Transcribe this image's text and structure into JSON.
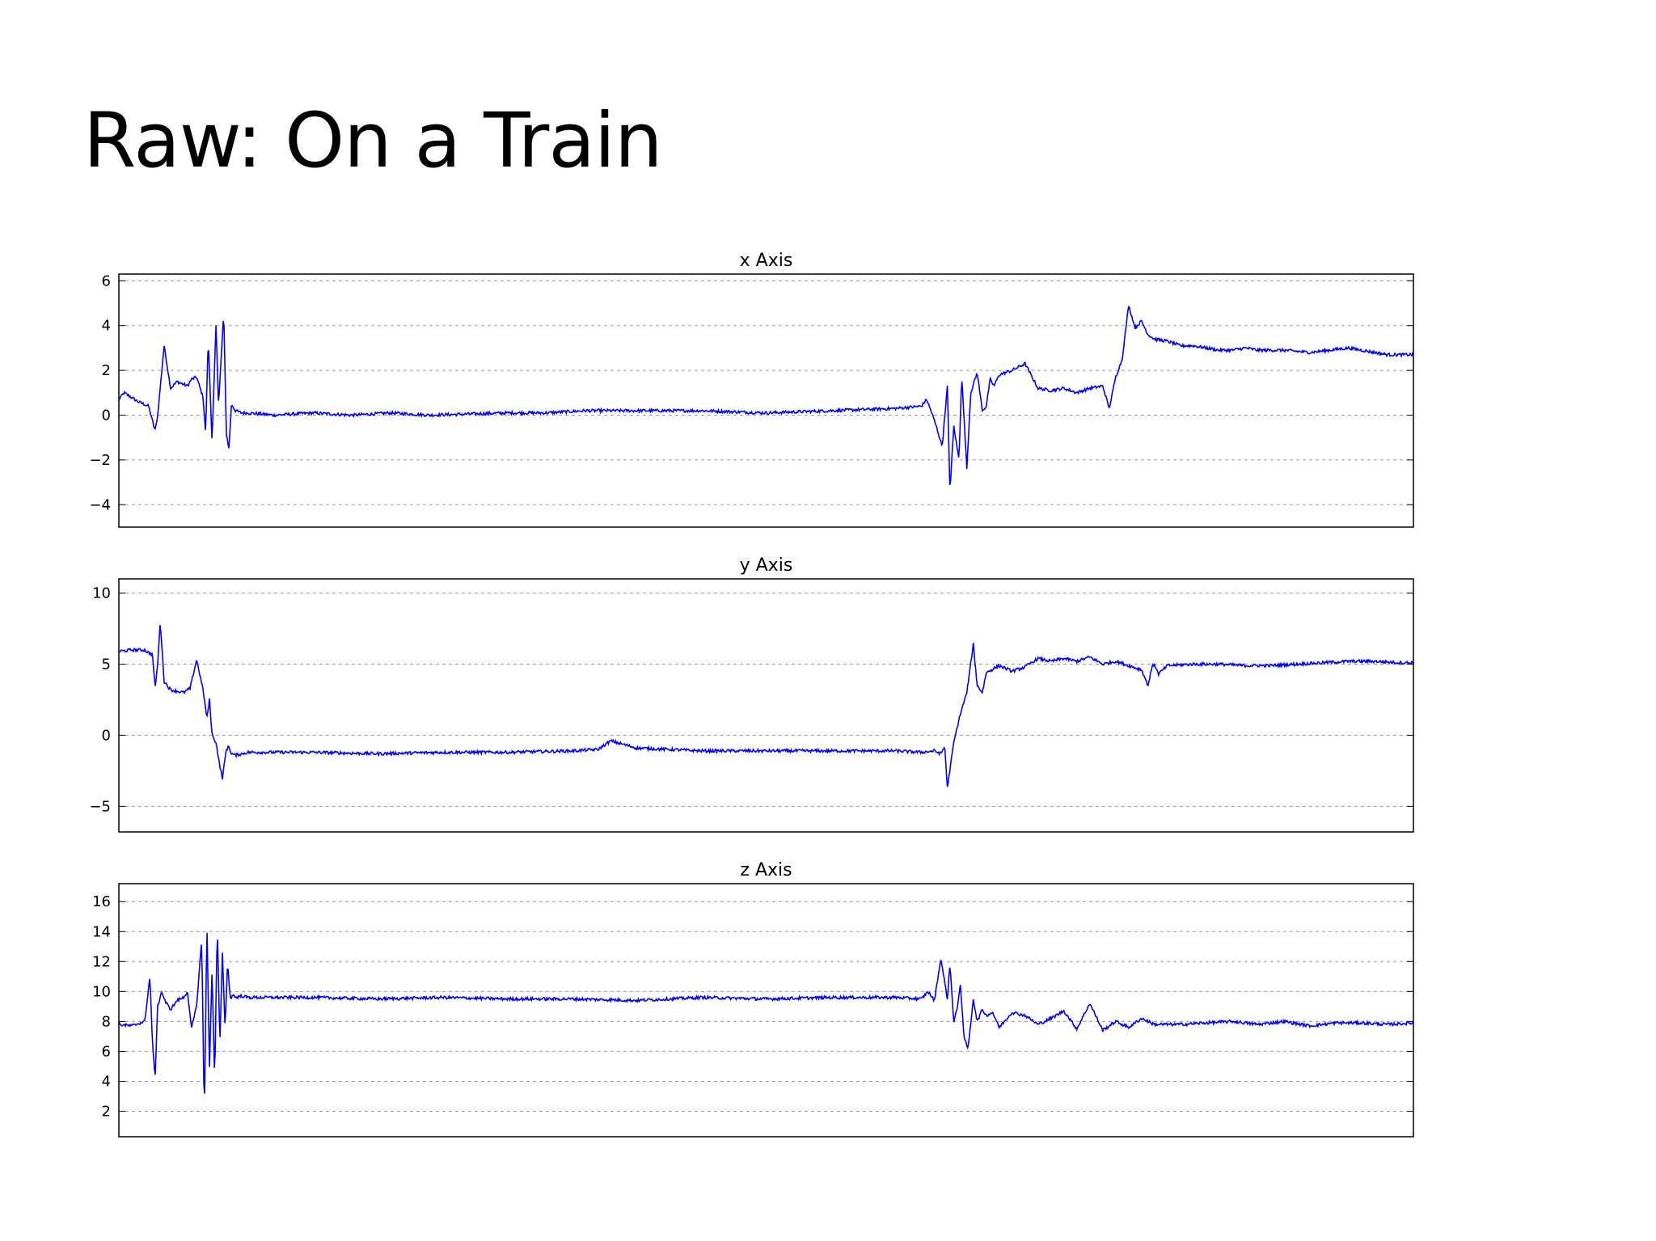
{
  "slide": {
    "title": "Raw: On a Train"
  },
  "chart_data": [
    {
      "type": "line",
      "title": "x Axis",
      "ylim": [
        -5,
        6.3
      ],
      "yticks": [
        6,
        4,
        2,
        0,
        -2,
        -4
      ],
      "ytick_labels": [
        "6",
        "4",
        "2",
        "0",
        "−2",
        "−4"
      ],
      "grid": true,
      "line_color": "#0000ff",
      "x": [
        0,
        0.004,
        0.015,
        0.023,
        0.028,
        0.03,
        0.035,
        0.04,
        0.045,
        0.053,
        0.056,
        0.06,
        0.065,
        0.067,
        0.069,
        0.072,
        0.075,
        0.077,
        0.079,
        0.081,
        0.083,
        0.085,
        0.087,
        0.09,
        0.095,
        0.1,
        0.12,
        0.15,
        0.18,
        0.21,
        0.24,
        0.27,
        0.3,
        0.33,
        0.36,
        0.4,
        0.45,
        0.5,
        0.55,
        0.6,
        0.62,
        0.624,
        0.628,
        0.632,
        0.636,
        0.64,
        0.642,
        0.645,
        0.649,
        0.651,
        0.655,
        0.658,
        0.663,
        0.667,
        0.67,
        0.673,
        0.676,
        0.68,
        0.69,
        0.7,
        0.71,
        0.72,
        0.73,
        0.74,
        0.75,
        0.76,
        0.765,
        0.77,
        0.775,
        0.78,
        0.785,
        0.79,
        0.795,
        0.8,
        0.81,
        0.82,
        0.83,
        0.84,
        0.85,
        0.86,
        0.87,
        0.88,
        0.9,
        0.92,
        0.95,
        0.98,
        1.0
      ],
      "y": [
        0.7,
        1.0,
        0.6,
        0.4,
        -0.7,
        0.0,
        3.1,
        1.2,
        1.5,
        1.3,
        1.6,
        1.7,
        0.8,
        -0.8,
        3.4,
        -1.2,
        4.0,
        0.5,
        2.5,
        4.6,
        -0.8,
        -1.5,
        0.5,
        0.2,
        0.1,
        0.1,
        0.0,
        0.1,
        0.0,
        0.1,
        0.0,
        0.05,
        0.1,
        0.1,
        0.2,
        0.2,
        0.2,
        0.1,
        0.2,
        0.3,
        0.4,
        0.7,
        0.1,
        -0.6,
        -1.4,
        1.3,
        -3.4,
        -0.5,
        -2.0,
        1.8,
        -2.4,
        1.0,
        1.9,
        0.2,
        0.4,
        1.6,
        1.3,
        1.8,
        2.0,
        2.3,
        1.2,
        1.1,
        1.2,
        1.0,
        1.2,
        1.3,
        0.3,
        1.7,
        2.5,
        4.9,
        3.9,
        4.2,
        3.6,
        3.4,
        3.3,
        3.1,
        3.1,
        3.0,
        2.9,
        2.9,
        3.0,
        2.9,
        2.9,
        2.8,
        3.0,
        2.7,
        2.7
      ]
    },
    {
      "type": "line",
      "title": "y Axis",
      "ylim": [
        -6.8,
        11
      ],
      "yticks": [
        10,
        5,
        0,
        -5
      ],
      "ytick_labels": [
        "10",
        "5",
        "0",
        "−5"
      ],
      "grid": true,
      "line_color": "#0000ff",
      "x": [
        0,
        0.01,
        0.02,
        0.023,
        0.026,
        0.028,
        0.03,
        0.032,
        0.035,
        0.04,
        0.05,
        0.055,
        0.06,
        0.062,
        0.065,
        0.068,
        0.07,
        0.072,
        0.075,
        0.078,
        0.08,
        0.083,
        0.085,
        0.087,
        0.09,
        0.095,
        0.1,
        0.15,
        0.2,
        0.25,
        0.3,
        0.35,
        0.37,
        0.38,
        0.4,
        0.45,
        0.5,
        0.55,
        0.6,
        0.62,
        0.63,
        0.635,
        0.638,
        0.64,
        0.645,
        0.65,
        0.655,
        0.66,
        0.663,
        0.667,
        0.67,
        0.68,
        0.69,
        0.7,
        0.71,
        0.72,
        0.73,
        0.74,
        0.75,
        0.76,
        0.77,
        0.78,
        0.79,
        0.795,
        0.798,
        0.8,
        0.803,
        0.81,
        0.83,
        0.85,
        0.87,
        0.89,
        0.91,
        0.93,
        0.95,
        0.97,
        0.99,
        1.0
      ],
      "y": [
        5.9,
        6.0,
        6.0,
        5.8,
        5.7,
        3.3,
        5.0,
        8.0,
        3.8,
        3.2,
        3.0,
        3.3,
        5.3,
        4.5,
        3.2,
        1.2,
        2.5,
        0.0,
        -0.5,
        -2.2,
        -3.0,
        -1.0,
        -0.8,
        -1.3,
        -1.4,
        -1.3,
        -1.2,
        -1.2,
        -1.3,
        -1.2,
        -1.2,
        -1.1,
        -1.0,
        -0.4,
        -0.9,
        -1.1,
        -1.1,
        -1.1,
        -1.1,
        -1.2,
        -1.1,
        -1.3,
        -0.8,
        -3.7,
        -0.5,
        1.5,
        3.0,
        6.4,
        3.5,
        3.0,
        4.4,
        4.9,
        4.5,
        4.8,
        5.4,
        5.2,
        5.4,
        5.2,
        5.5,
        5.0,
        5.2,
        4.9,
        4.6,
        3.5,
        4.8,
        5.0,
        4.3,
        4.9,
        5.0,
        5.0,
        4.9,
        4.9,
        5.0,
        5.1,
        5.2,
        5.2,
        5.1,
        5.1
      ]
    },
    {
      "type": "line",
      "title": "z Axis",
      "ylim": [
        0.3,
        17.2
      ],
      "yticks": [
        16,
        14,
        12,
        10,
        8,
        6,
        4,
        2
      ],
      "ytick_labels": [
        "16",
        "14",
        "12",
        "10",
        "8",
        "6",
        "4",
        "2"
      ],
      "grid": true,
      "line_color": "#0000ff",
      "x": [
        0,
        0.01,
        0.02,
        0.024,
        0.026,
        0.028,
        0.03,
        0.033,
        0.036,
        0.04,
        0.045,
        0.05,
        0.053,
        0.056,
        0.06,
        0.064,
        0.066,
        0.068,
        0.07,
        0.072,
        0.074,
        0.076,
        0.078,
        0.08,
        0.082,
        0.084,
        0.086,
        0.088,
        0.09,
        0.095,
        0.1,
        0.15,
        0.2,
        0.25,
        0.3,
        0.35,
        0.4,
        0.45,
        0.5,
        0.55,
        0.6,
        0.62,
        0.625,
        0.63,
        0.635,
        0.64,
        0.642,
        0.645,
        0.648,
        0.65,
        0.653,
        0.656,
        0.66,
        0.663,
        0.667,
        0.67,
        0.675,
        0.68,
        0.69,
        0.7,
        0.71,
        0.72,
        0.73,
        0.74,
        0.75,
        0.76,
        0.77,
        0.78,
        0.79,
        0.8,
        0.82,
        0.84,
        0.86,
        0.88,
        0.9,
        0.92,
        0.94,
        0.96,
        0.98,
        1.0
      ],
      "y": [
        7.8,
        7.7,
        8.0,
        11.0,
        6.5,
        4.2,
        9.0,
        10.0,
        9.3,
        8.8,
        9.4,
        9.6,
        10.0,
        7.5,
        9.0,
        13.5,
        1.5,
        14.5,
        5.0,
        11.5,
        4.0,
        14.5,
        6.5,
        12.5,
        7.5,
        12.0,
        9.5,
        9.8,
        9.6,
        9.7,
        9.6,
        9.6,
        9.5,
        9.6,
        9.5,
        9.5,
        9.4,
        9.6,
        9.5,
        9.6,
        9.6,
        9.5,
        10.0,
        9.4,
        12.2,
        9.5,
        11.8,
        8.0,
        9.0,
        10.5,
        6.8,
        6.2,
        9.5,
        8.0,
        8.8,
        8.4,
        8.6,
        7.6,
        8.6,
        8.4,
        7.8,
        8.2,
        8.7,
        7.5,
        9.2,
        7.4,
        8.0,
        7.6,
        8.2,
        7.8,
        7.8,
        7.9,
        8.0,
        7.8,
        8.0,
        7.7,
        7.9,
        7.9,
        7.8,
        7.9
      ]
    }
  ]
}
